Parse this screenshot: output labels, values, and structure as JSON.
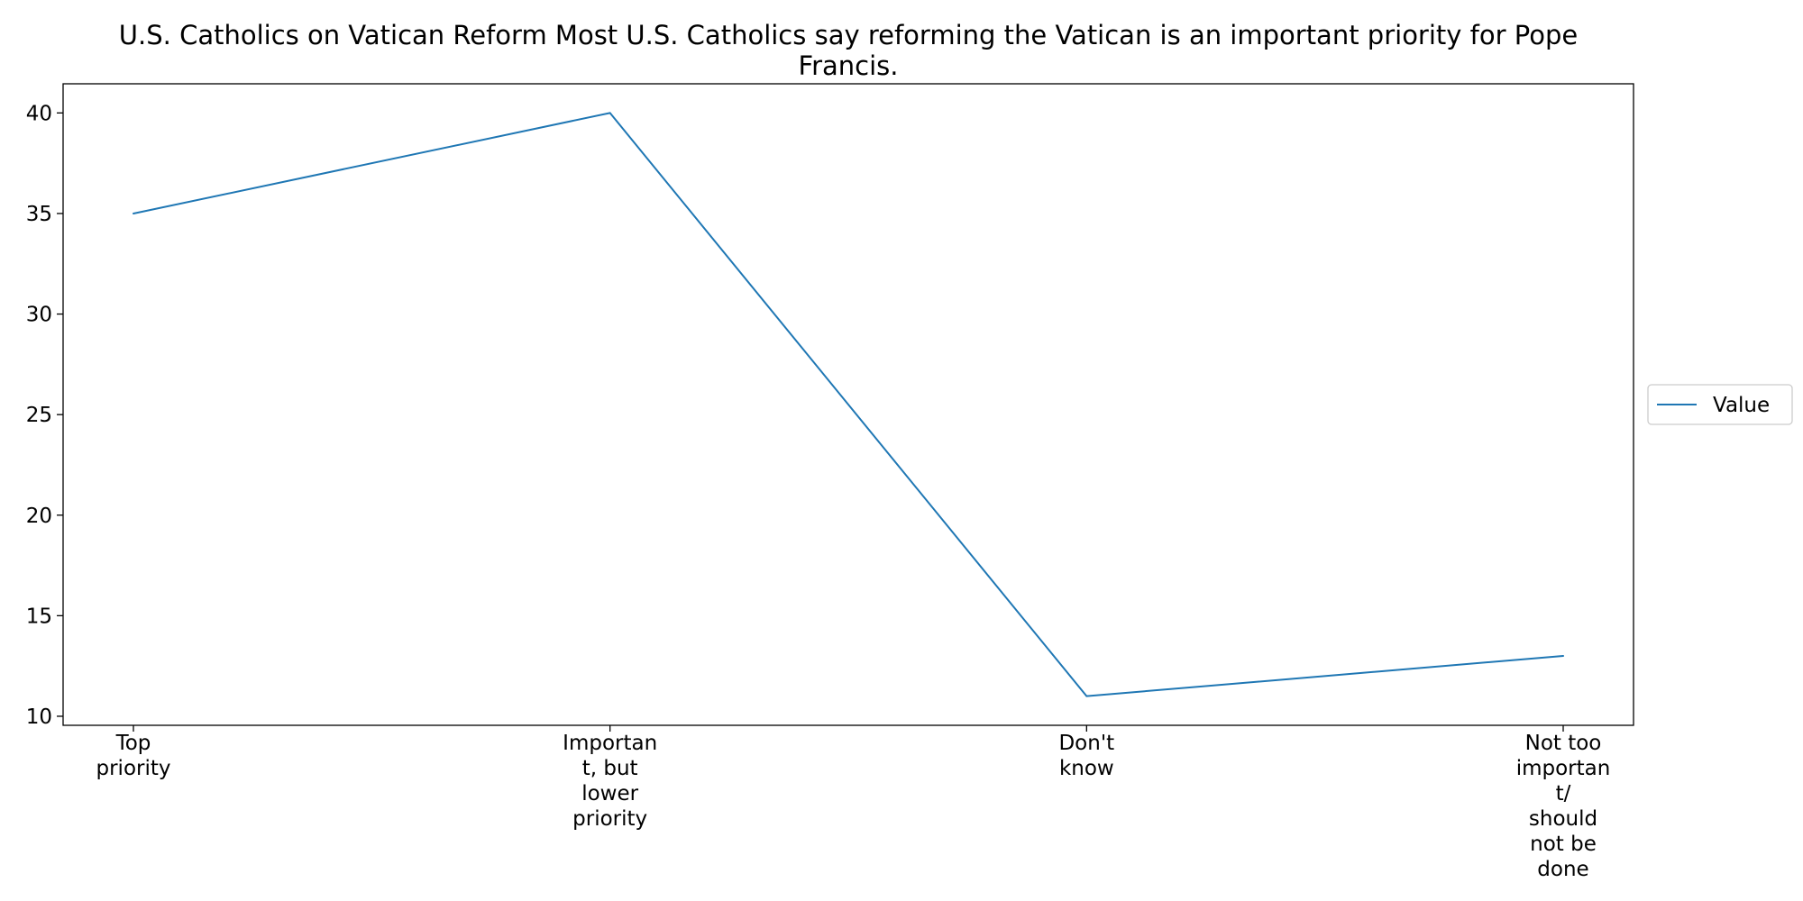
{
  "chart_data": {
    "type": "line",
    "title": "U.S. Catholics on Vatican Reform Most U.S. Catholics say reforming the Vatican is an important priority for Pope Francis.",
    "title_lines": [
      "U.S. Catholics on Vatican Reform Most U.S. Catholics say reforming the Vatican is an important priority for Pope",
      "Francis."
    ],
    "xlabel": "",
    "ylabel": "",
    "categories": [
      "Top priority",
      "Important, but lower priority",
      "Don't know",
      "Not too important/ should not be done"
    ],
    "category_lines": [
      [
        "Top",
        "priority"
      ],
      [
        "Importan",
        "t, but",
        "lower",
        "priority"
      ],
      [
        "Don't",
        "know"
      ],
      [
        "Not too",
        "importan",
        "t/",
        "should",
        "not be",
        "done"
      ]
    ],
    "series": [
      {
        "name": "Value",
        "color": "#1f77b4",
        "values": [
          35,
          40,
          11,
          13
        ]
      }
    ],
    "ylim": [
      9.55,
      41.45
    ],
    "yticks": [
      10,
      15,
      20,
      25,
      30,
      35,
      40
    ],
    "grid": false,
    "legend_position": "right"
  }
}
